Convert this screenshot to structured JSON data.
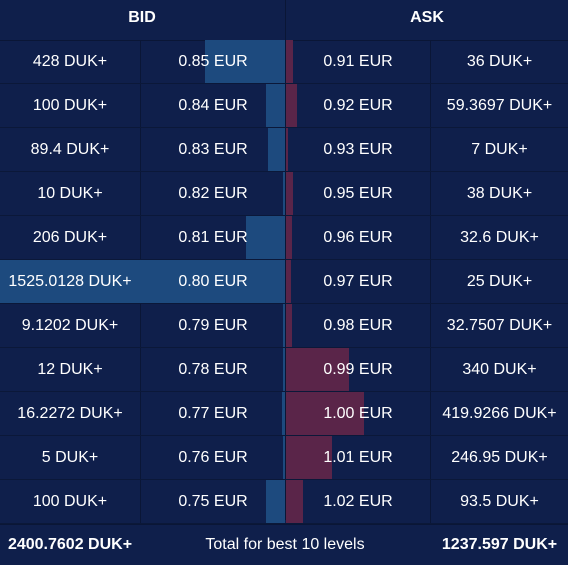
{
  "header": {
    "bid_label": "BID",
    "ask_label": "ASK"
  },
  "colors": {
    "background": "#0f1f4b",
    "bid_bar": "#1d4a7e",
    "ask_bar": "#5a2549",
    "text": "#ffffff"
  },
  "levels": [
    {
      "bid_qty": "428 DUK+",
      "bid_qty_value": 428,
      "bid_price": "0.85 EUR",
      "ask_price": "0.91 EUR",
      "ask_qty": "36 DUK+",
      "ask_qty_value": 36
    },
    {
      "bid_qty": "100 DUK+",
      "bid_qty_value": 100,
      "bid_price": "0.84 EUR",
      "ask_price": "0.92 EUR",
      "ask_qty": "59.3697 DUK+",
      "ask_qty_value": 59.3697
    },
    {
      "bid_qty": "89.4 DUK+",
      "bid_qty_value": 89.4,
      "bid_price": "0.83 EUR",
      "ask_price": "0.93 EUR",
      "ask_qty": "7 DUK+",
      "ask_qty_value": 7
    },
    {
      "bid_qty": "10 DUK+",
      "bid_qty_value": 10,
      "bid_price": "0.82 EUR",
      "ask_price": "0.95 EUR",
      "ask_qty": "38 DUK+",
      "ask_qty_value": 38
    },
    {
      "bid_qty": "206 DUK+",
      "bid_qty_value": 206,
      "bid_price": "0.81 EUR",
      "ask_price": "0.96 EUR",
      "ask_qty": "32.6 DUK+",
      "ask_qty_value": 32.6
    },
    {
      "bid_qty": "1525.0128 DUK+",
      "bid_qty_value": 1525.0128,
      "bid_price": "0.80 EUR",
      "ask_price": "0.97 EUR",
      "ask_qty": "25 DUK+",
      "ask_qty_value": 25
    },
    {
      "bid_qty": "9.1202 DUK+",
      "bid_qty_value": 9.1202,
      "bid_price": "0.79 EUR",
      "ask_price": "0.98 EUR",
      "ask_qty": "32.7507 DUK+",
      "ask_qty_value": 32.7507
    },
    {
      "bid_qty": "12 DUK+",
      "bid_qty_value": 12,
      "bid_price": "0.78 EUR",
      "ask_price": "0.99 EUR",
      "ask_qty": "340 DUK+",
      "ask_qty_value": 340
    },
    {
      "bid_qty": "16.2272 DUK+",
      "bid_qty_value": 16.2272,
      "bid_price": "0.77 EUR",
      "ask_price": "1.00 EUR",
      "ask_qty": "419.9266 DUK+",
      "ask_qty_value": 419.9266
    },
    {
      "bid_qty": "5 DUK+",
      "bid_qty_value": 5,
      "bid_price": "0.76 EUR",
      "ask_price": "1.01 EUR",
      "ask_qty": "246.95 DUK+",
      "ask_qty_value": 246.95
    },
    {
      "bid_qty": "100 DUK+",
      "bid_qty_value": 100,
      "bid_price": "0.75 EUR",
      "ask_price": "1.02 EUR",
      "ask_qty": "93.5 DUK+",
      "ask_qty_value": 93.5
    }
  ],
  "footer": {
    "bid_total": "2400.7602 DUK+",
    "label": "Total for best 10 levels",
    "ask_total": "1237.597 DUK+"
  }
}
